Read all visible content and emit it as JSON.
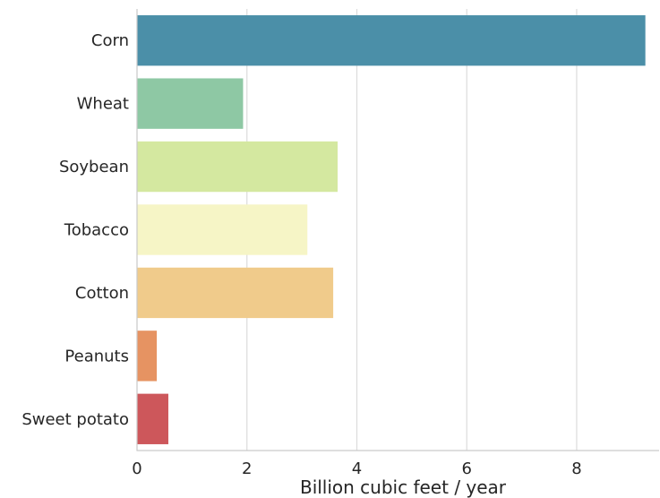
{
  "chart_data": {
    "type": "bar",
    "orientation": "horizontal",
    "title": "",
    "xlabel": "Billion cubic feet / year",
    "ylabel": "",
    "categories": [
      "Corn",
      "Wheat",
      "Soybean",
      "Tobacco",
      "Cotton",
      "Peanuts",
      "Sweet potato"
    ],
    "values": [
      9.25,
      1.93,
      3.65,
      3.1,
      3.57,
      0.36,
      0.57
    ],
    "colors": [
      "#4b8fa8",
      "#8ec8a4",
      "#d4e8a0",
      "#f6f5c6",
      "#f0cb8b",
      "#e69362",
      "#cd575b"
    ],
    "xlim": [
      0,
      9.5
    ],
    "xticks": [
      0,
      2,
      4,
      6,
      8
    ],
    "grid": "vertical"
  }
}
